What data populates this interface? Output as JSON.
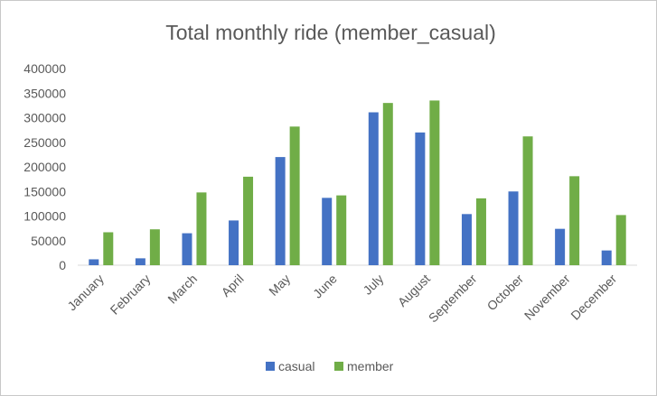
{
  "chart_data": {
    "type": "bar",
    "title": "Total monthly ride (member_casual)",
    "xlabel": "",
    "ylabel": "",
    "categories": [
      "January",
      "February",
      "March",
      "April",
      "May",
      "June",
      "July",
      "August",
      "September",
      "October",
      "November",
      "December"
    ],
    "series": [
      {
        "name": "casual",
        "color": "#4472c4",
        "values": [
          12000,
          14000,
          65000,
          91000,
          220000,
          137000,
          311000,
          270000,
          104000,
          150000,
          74000,
          30000
        ]
      },
      {
        "name": "member",
        "color": "#70ad47",
        "values": [
          67000,
          73000,
          148000,
          180000,
          282000,
          142000,
          330000,
          335000,
          136000,
          262000,
          181000,
          102000
        ]
      }
    ],
    "ylim": [
      0,
      400000
    ],
    "yticks": [
      "0",
      "50000",
      "100000",
      "150000",
      "200000",
      "250000",
      "300000",
      "350000",
      "400000"
    ],
    "grid": false,
    "legend": "bottom"
  }
}
